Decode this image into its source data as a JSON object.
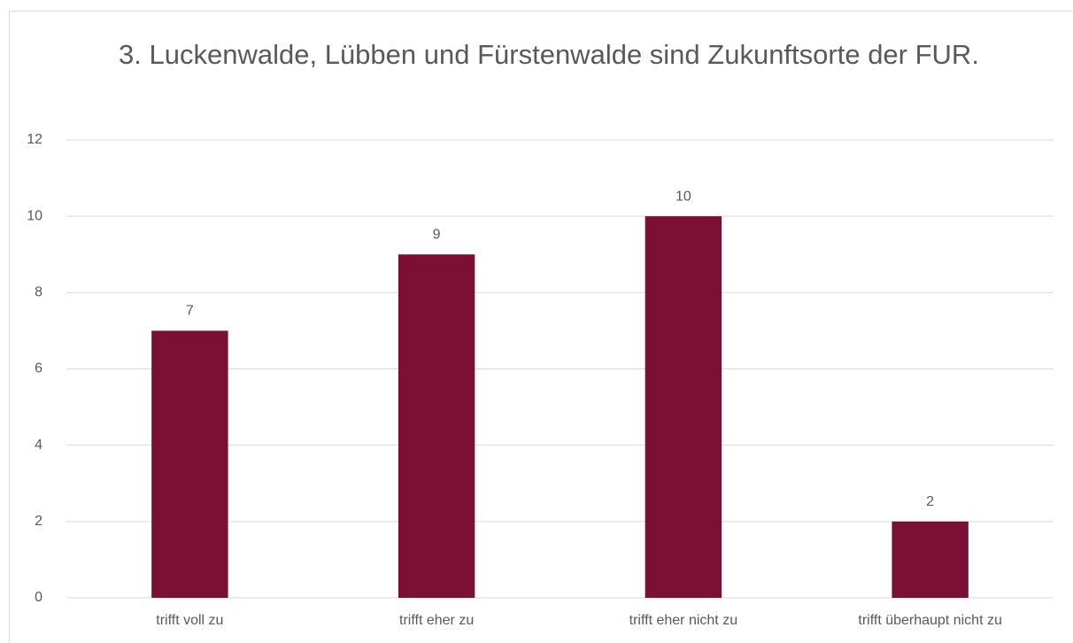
{
  "chart_data": {
    "type": "bar",
    "title": "3. Luckenwalde, Lübben und Fürstenwalde sind Zukunftsorte der FUR.",
    "categories": [
      "trifft voll zu",
      "trifft eher zu",
      "trifft eher nicht zu",
      "trifft überhaupt nicht zu"
    ],
    "values": [
      7,
      9,
      10,
      2
    ],
    "color": "#7b1034",
    "ylim": [
      0,
      12
    ],
    "yticks": [
      0,
      2,
      4,
      6,
      8,
      10,
      12
    ],
    "grid": true,
    "data_labels": true
  }
}
